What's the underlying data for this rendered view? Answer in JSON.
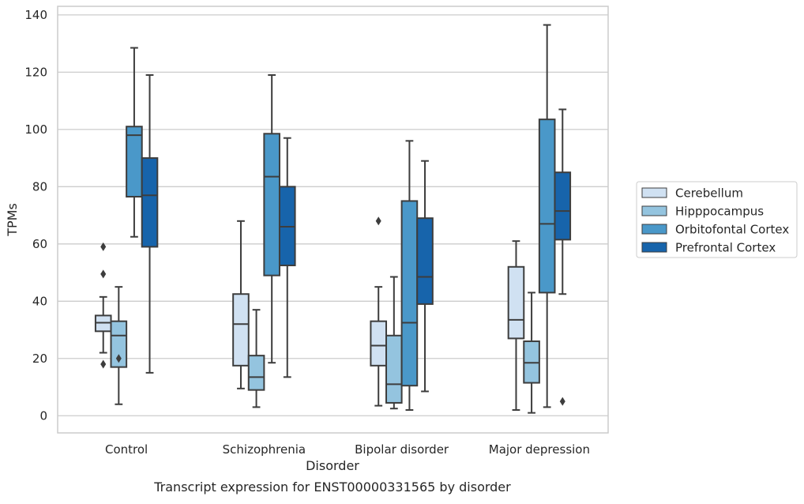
{
  "chart_data": {
    "type": "boxplot",
    "caption": "Transcript expression for ENST00000331565 by disorder",
    "xlabel": "Disorder",
    "ylabel": "TPMs",
    "ylim": [
      -6,
      143
    ],
    "yticks": [
      0,
      20,
      40,
      60,
      80,
      100,
      120,
      140
    ],
    "grid": true,
    "legend_position": "right",
    "categories": [
      "Control",
      "Schizophrenia",
      "Bipolar disorder",
      "Major depression"
    ],
    "series": [
      {
        "name": "Cerebellum",
        "color": "#d0e1f2",
        "boxes": [
          {
            "min": 22,
            "q1": 29.5,
            "median": 32.5,
            "q3": 35,
            "max": 41.5,
            "outliers": [
              59,
              49.5,
              18
            ]
          },
          {
            "min": 9.5,
            "q1": 17.5,
            "median": 32,
            "q3": 42.5,
            "max": 68,
            "outliers": []
          },
          {
            "min": 3.5,
            "q1": 17.5,
            "median": 24.5,
            "q3": 33,
            "max": 45,
            "outliers": [
              68
            ]
          },
          {
            "min": 2,
            "q1": 27,
            "median": 33.5,
            "q3": 52,
            "max": 61,
            "outliers": []
          }
        ]
      },
      {
        "name": "Hipppocampus",
        "color": "#94c4df",
        "boxes": [
          {
            "min": 4,
            "q1": 17,
            "median": 28,
            "q3": 33,
            "max": 45,
            "outliers": [
              20
            ]
          },
          {
            "min": 3,
            "q1": 9,
            "median": 13.5,
            "q3": 21,
            "max": 37,
            "outliers": []
          },
          {
            "min": 2.5,
            "q1": 4.5,
            "median": 11,
            "q3": 28,
            "max": 48.5,
            "outliers": []
          },
          {
            "min": 1,
            "q1": 11.5,
            "median": 18.5,
            "q3": 26,
            "max": 43,
            "outliers": []
          }
        ]
      },
      {
        "name": "Orbitofontal Cortex",
        "color": "#4a98c9",
        "boxes": [
          {
            "min": 62.5,
            "q1": 76.5,
            "median": 98,
            "q3": 101,
            "max": 128.5,
            "outliers": []
          },
          {
            "min": 18.5,
            "q1": 49,
            "median": 83.5,
            "q3": 98.5,
            "max": 119,
            "outliers": []
          },
          {
            "min": 2,
            "q1": 10.5,
            "median": 32.5,
            "q3": 75,
            "max": 96,
            "outliers": []
          },
          {
            "min": 3,
            "q1": 43,
            "median": 67,
            "q3": 103.5,
            "max": 136.5,
            "outliers": []
          }
        ]
      },
      {
        "name": "Prefrontal Cortex",
        "color": "#1764ab",
        "boxes": [
          {
            "min": 15,
            "q1": 59,
            "median": 77,
            "q3": 90,
            "max": 119,
            "outliers": []
          },
          {
            "min": 13.5,
            "q1": 52.5,
            "median": 66,
            "q3": 80,
            "max": 97,
            "outliers": []
          },
          {
            "min": 8.5,
            "q1": 39,
            "median": 48.5,
            "q3": 69,
            "max": 89,
            "outliers": []
          },
          {
            "min": 42.5,
            "q1": 61.5,
            "median": 71.5,
            "q3": 85,
            "max": 107,
            "outliers": [
              5
            ]
          }
        ]
      }
    ]
  }
}
